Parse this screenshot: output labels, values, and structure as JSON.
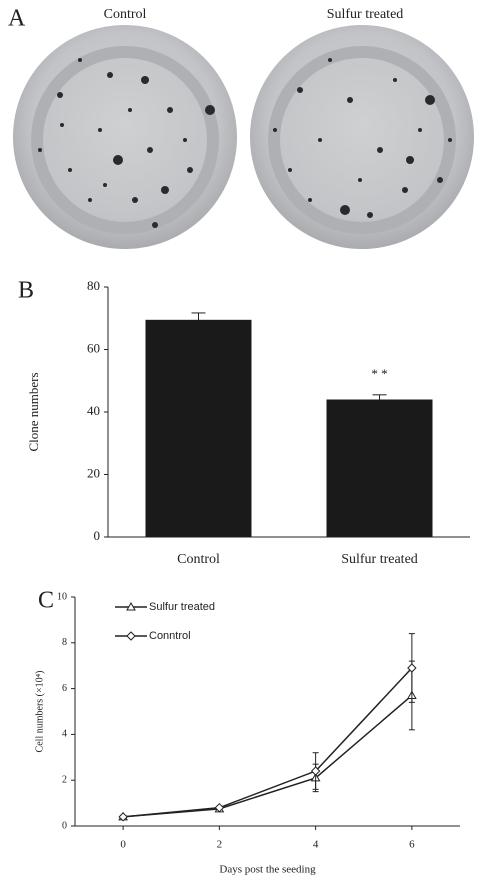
{
  "panel_a": {
    "label": "A",
    "captions": [
      "Control",
      "Sulfur treated"
    ]
  },
  "chart_data": [
    {
      "type": "bar",
      "panel_label": "B",
      "y_label": "Clone numbers",
      "categories": [
        "Control",
        "Sulfur treated"
      ],
      "values": [
        69.5,
        44
      ],
      "errors": [
        2.2,
        1.5
      ],
      "color": "#1a1a1a",
      "annotations": [
        null,
        "* *"
      ],
      "ylim": [
        0,
        80
      ],
      "yticks": [
        0,
        20,
        40,
        60,
        80
      ],
      "grid": false
    },
    {
      "type": "line",
      "panel_label": "C",
      "y_label": "Cell numbers (×10⁴)",
      "x_label": "Days post the seeding",
      "x": [
        0,
        2,
        4,
        6
      ],
      "series": [
        {
          "name": "Sulfur treated",
          "color": "#222",
          "marker": "triangle",
          "values": [
            0.4,
            0.75,
            2.1,
            5.7
          ],
          "errors": [
            0.05,
            0.05,
            0.6,
            1.5
          ]
        },
        {
          "name": "Conntrol",
          "color": "#222",
          "marker": "diamond",
          "values": [
            0.4,
            0.8,
            2.4,
            6.9
          ],
          "errors": [
            0.05,
            0.05,
            0.8,
            1.5
          ]
        }
      ],
      "xlim": [
        -1,
        7
      ],
      "xticks": [
        0,
        2,
        4,
        6
      ],
      "ylim": [
        0,
        10
      ],
      "yticks": [
        0,
        2,
        4,
        6,
        8,
        10
      ],
      "grid": false,
      "legend": "top-left"
    }
  ]
}
